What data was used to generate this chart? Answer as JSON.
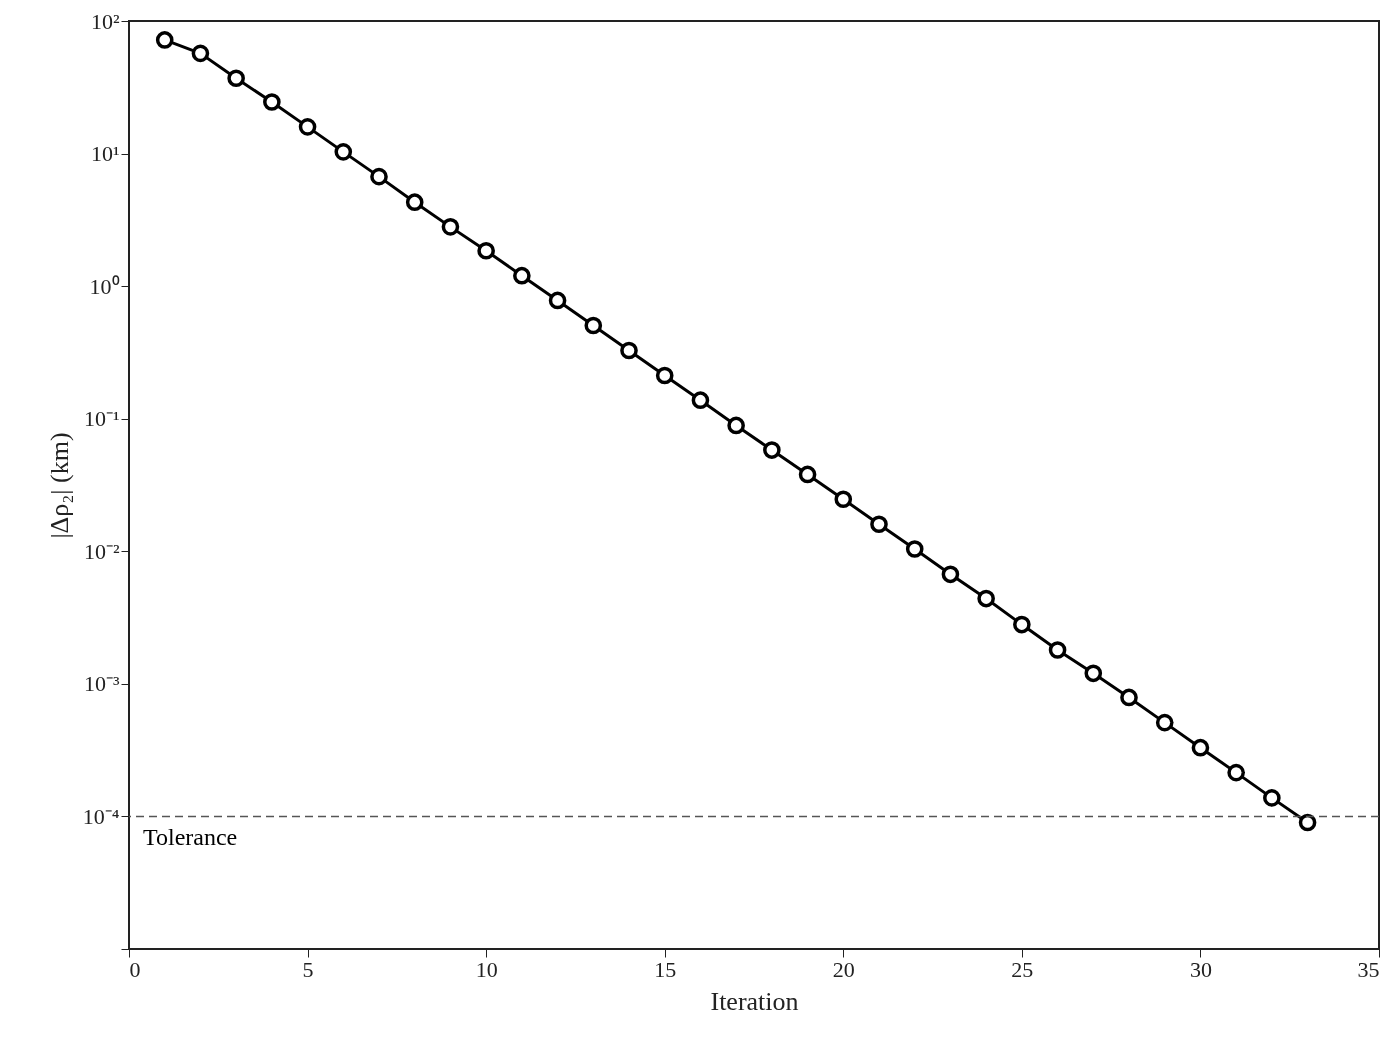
{
  "chart_data": {
    "type": "line",
    "xlabel": "Iteration",
    "ylabel": "|Δρ₂| (km)",
    "log": "y",
    "grid": false,
    "marker": "circle",
    "line_style": "solid",
    "x": [
      1,
      2,
      3,
      4,
      5,
      6,
      7,
      8,
      9,
      10,
      11,
      12,
      13,
      14,
      15,
      16,
      17,
      18,
      19,
      20,
      21,
      22,
      23,
      24,
      25,
      26,
      27,
      28,
      29,
      30,
      31,
      32,
      33
    ],
    "series": [
      {
        "color": "#000000",
        "values": [
          72,
          57,
          37,
          24.5,
          15.9,
          10.3,
          6.7,
          4.3,
          2.8,
          1.85,
          1.2,
          0.78,
          0.505,
          0.327,
          0.212,
          0.138,
          0.089,
          0.058,
          0.038,
          0.0247,
          0.016,
          0.0104,
          0.0067,
          0.0044,
          0.0028,
          0.0018,
          0.0012,
          0.00079,
          0.00051,
          0.00033,
          0.000214,
          0.000138,
          9e-05
        ]
      }
    ],
    "xlim": [
      0,
      35
    ],
    "xticks": [
      0,
      5,
      10,
      15,
      20,
      25,
      30,
      35
    ],
    "ylim": [
      1e-05,
      100
    ],
    "yticks": [
      {
        "value": 100,
        "label": "10²"
      },
      {
        "value": 10,
        "label": "10¹"
      },
      {
        "value": 1,
        "label": "10⁰"
      },
      {
        "value": 0.1,
        "label": "10⁻¹"
      },
      {
        "value": 0.01,
        "label": "10⁻²"
      },
      {
        "value": 0.001,
        "label": "10⁻³"
      },
      {
        "value": 0.0001,
        "label": "10⁻⁴"
      },
      {
        "value": 1e-05,
        "label": null
      }
    ],
    "ref_lines": [
      {
        "axis": "y",
        "value": 0.0001,
        "label": "Tolerance",
        "color": "#555555",
        "line_style": "dashed"
      }
    ]
  }
}
